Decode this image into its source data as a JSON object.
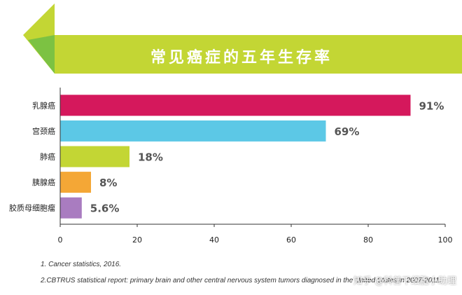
{
  "banner": {
    "title": "常见癌症的五年生存率"
  },
  "colors": {
    "banner_green": "#c3d634",
    "arrow_green": "#7cc242"
  },
  "chart_data": {
    "type": "bar",
    "orientation": "horizontal",
    "categories": [
      "乳腺癌",
      "宫颈癌",
      "肺癌",
      "胰腺癌",
      "胶质母细胞瘤"
    ],
    "values": [
      91,
      69,
      18,
      8,
      5.6
    ],
    "value_labels": [
      "91%",
      "69%",
      "18%",
      "8%",
      "5.6%"
    ],
    "bar_colors": [
      "#d5185c",
      "#5cc8e6",
      "#c3d634",
      "#f4a736",
      "#a97cc0"
    ],
    "xlim": [
      0,
      100
    ],
    "xticks": [
      0,
      20,
      40,
      60,
      80,
      100
    ],
    "grid": false,
    "legend": "none"
  },
  "footnotes": [
    "1. Cancer statistics, 2016.",
    "2.CBTRUS statistical report: primary brain and other central nervous system tumors diagnosed in the United States in 2007-2011."
  ],
  "watermark": "知乎 @科普干细胞小助理"
}
